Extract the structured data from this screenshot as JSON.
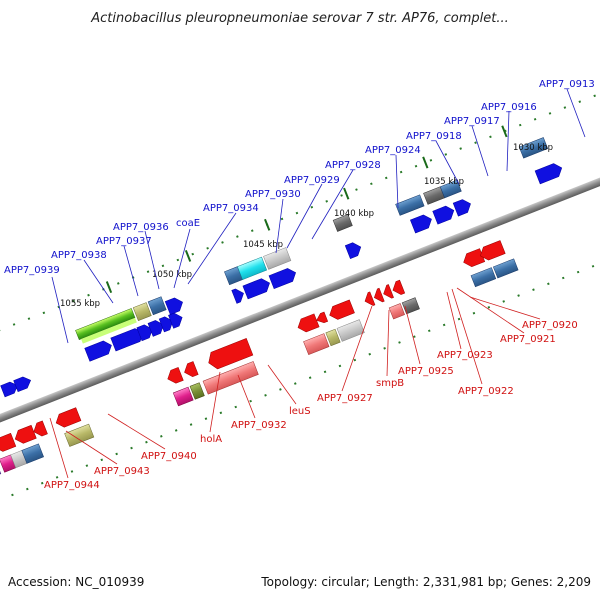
{
  "title": "Actinobacillus pleuropneumoniae serovar 7 str. AP76, complet...",
  "footer": {
    "accession": "Accession: NC_010939",
    "topology": "Topology: circular; Length: 2,331,981 bp; Genes: 2,209"
  },
  "kbp_ticks": [
    "1055 kbp",
    "1050 kbp",
    "1045 kbp",
    "1040 kbp",
    "1035 kbp",
    "1030 kbp"
  ],
  "gene_labels_top": [
    "APP7_0939",
    "APP7_0938",
    "APP7_0937",
    "APP7_0936",
    "coaE",
    "APP7_0934",
    "APP7_0930",
    "APP7_0929",
    "APP7_0928",
    "APP7_0924",
    "APP7_0918",
    "APP7_0917",
    "APP7_0916",
    "APP7_0913"
  ],
  "gene_labels_bottom": [
    "APP7_0944",
    "APP7_0943",
    "APP7_0940",
    "holA",
    "APP7_0932",
    "leuS",
    "APP7_0927",
    "smpB",
    "APP7_0925",
    "APP7_0923",
    "APP7_0922",
    "APP7_0921",
    "APP7_0920"
  ],
  "colors": {
    "forward_label": "#1010cc",
    "reverse_label": "#d01010",
    "backbone": "#8a8a8a"
  }
}
